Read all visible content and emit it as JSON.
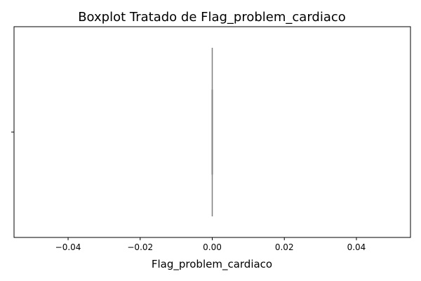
{
  "chart_data": {
    "type": "boxplot",
    "orientation": "horizontal",
    "title": "Boxplot Tratado de Flag_problem_cardiaco",
    "xlabel": "Flag_problem_cardiaco",
    "ylabel": "",
    "xlim": [
      -0.055,
      0.055
    ],
    "xticks": [
      -0.04,
      -0.02,
      0.0,
      0.02,
      0.04
    ],
    "xtick_labels": [
      "−0.04",
      "−0.02",
      "0.00",
      "0.02",
      "0.04"
    ],
    "grid": false,
    "series": [
      {
        "min": 0.0,
        "q1": 0.0,
        "median": 0.0,
        "q3": 0.0,
        "max": 0.0
      }
    ],
    "colors": {
      "box": "#7f7f7f",
      "axes": "#000000"
    }
  }
}
